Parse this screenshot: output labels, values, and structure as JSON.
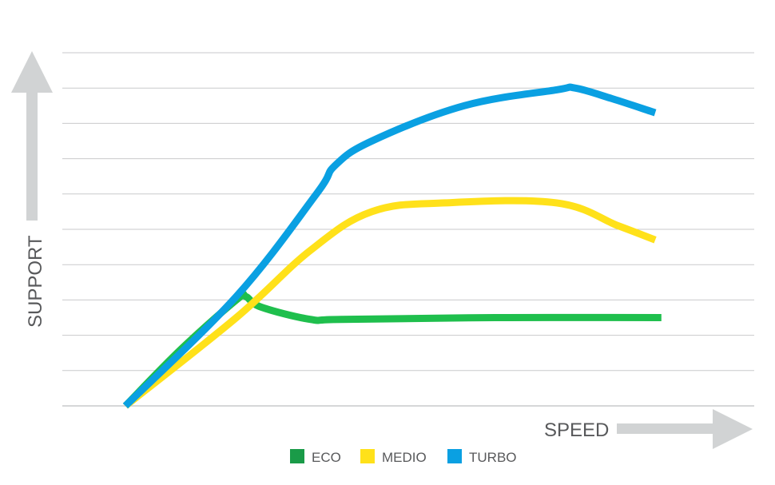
{
  "chart_data": {
    "type": "line",
    "xlabel": "SPEED",
    "ylabel": "SUPPORT",
    "grid": true,
    "legend_placement": "bottom-center",
    "xlim": [
      0,
      100
    ],
    "ylim": [
      0,
      100
    ],
    "series": [
      {
        "name": "ECO",
        "color": "#1fbf4d",
        "points": [
          [
            0,
            0
          ],
          [
            9,
            16
          ],
          [
            18,
            30
          ],
          [
            19.5,
            31
          ],
          [
            22,
            28
          ],
          [
            30,
            24.5
          ],
          [
            35,
            24.5
          ],
          [
            60,
            25
          ],
          [
            87,
            25
          ]
        ]
      },
      {
        "name": "MEDIO",
        "color": "#ffe11a",
        "points": [
          [
            0,
            0
          ],
          [
            18,
            25
          ],
          [
            30,
            44
          ],
          [
            40,
            55
          ],
          [
            52,
            57.5
          ],
          [
            70,
            57.5
          ],
          [
            80,
            51
          ],
          [
            86,
            47
          ]
        ]
      },
      {
        "name": "TURBO",
        "color": "#0aa0e2",
        "points": [
          [
            0,
            0
          ],
          [
            18,
            31
          ],
          [
            31,
            60
          ],
          [
            34,
            68
          ],
          [
            40,
            75
          ],
          [
            55,
            85
          ],
          [
            70,
            89.5
          ],
          [
            73,
            90
          ],
          [
            79,
            87
          ],
          [
            86,
            83
          ]
        ]
      }
    ],
    "legend": [
      "ECO",
      "MEDIO",
      "TURBO"
    ],
    "legend_colors": [
      "#1a9b48",
      "#ffe11a",
      "#0aa0e2"
    ],
    "gridline_count": 11,
    "axis_arrow_color": "#d1d3d4",
    "gridline_color": "#c9cacb"
  }
}
